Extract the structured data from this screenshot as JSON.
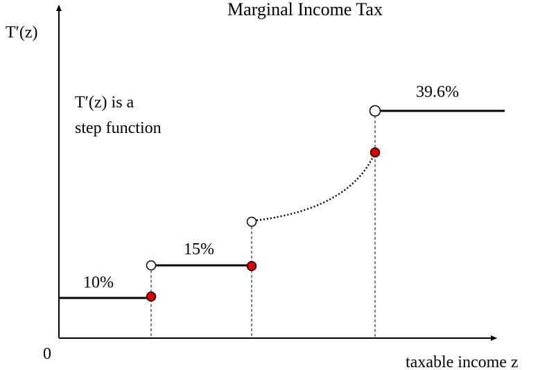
{
  "title": "Marginal Income Tax",
  "y_label": "T′(z)",
  "x_label": "taxable income z",
  "origin": "0",
  "annotation": [
    "T′(z) is a",
    "step function"
  ],
  "segments": [
    {
      "label": "10%"
    },
    {
      "label": "15%"
    },
    {
      "label": "39.6%"
    }
  ]
}
